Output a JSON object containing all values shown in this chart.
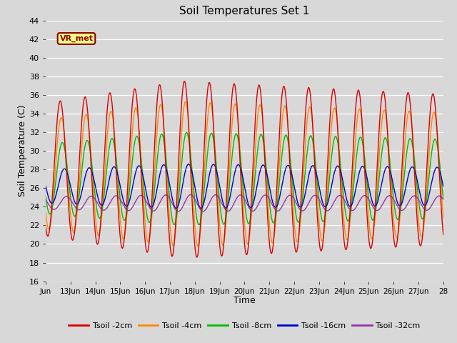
{
  "title": "Soil Temperatures Set 1",
  "xlabel": "Time",
  "ylabel": "Soil Temperature (C)",
  "ylim": [
    16,
    44
  ],
  "xlim_days": [
    12,
    28
  ],
  "yticks": [
    16,
    18,
    20,
    22,
    24,
    26,
    28,
    30,
    32,
    34,
    36,
    38,
    40,
    42,
    44
  ],
  "xtick_labels": [
    "Jun",
    "13Jun",
    "14Jun",
    "15Jun",
    "16Jun",
    "17Jun",
    "18Jun",
    "19Jun",
    "20Jun",
    "21Jun",
    "22Jun",
    "23Jun",
    "24Jun",
    "25Jun",
    "26Jun",
    "27Jun",
    "28"
  ],
  "xtick_positions": [
    12,
    13,
    14,
    15,
    16,
    17,
    18,
    19,
    20,
    21,
    22,
    23,
    24,
    25,
    26,
    27,
    28
  ],
  "colors": {
    "2cm": "#dd0000",
    "4cm": "#ff8800",
    "8cm": "#00bb00",
    "16cm": "#0000cc",
    "32cm": "#9933aa"
  },
  "line_width": 1.0,
  "background_color": "#d8d8d8",
  "plot_bg_color": "#d8d8d8",
  "grid_color": "#ffffff",
  "label_box_text": "VR_met",
  "label_box_facecolor": "#ffff88",
  "label_box_edgecolor": "#8b0000",
  "legend_labels": [
    "Tsoil -2cm",
    "Tsoil -4cm",
    "Tsoil -8cm",
    "Tsoil -16cm",
    "Tsoil -32cm"
  ],
  "figsize": [
    6.4,
    4.8
  ],
  "dpi": 100
}
